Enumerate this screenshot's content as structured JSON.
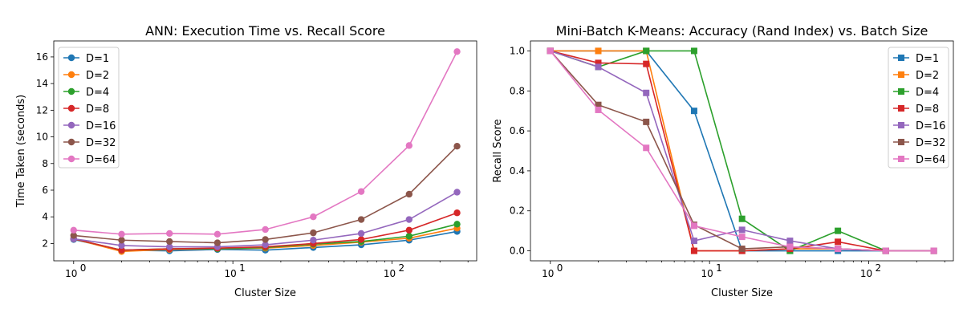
{
  "colors": {
    "D=1": "#1f77b4",
    "D=2": "#ff7f0e",
    "D=4": "#2ca02c",
    "D=8": "#d62728",
    "D=16": "#9467bd",
    "D=32": "#8c564b",
    "D=64": "#e377c2"
  },
  "chart_data": [
    {
      "type": "line",
      "title": "ANN: Execution Time vs. Recall Score",
      "xlabel": "Cluster Size",
      "ylabel": "Time Taken (seconds)",
      "xscale": "log",
      "xlim": [
        0.75,
        340
      ],
      "ylim": [
        0.7,
        17.2
      ],
      "xticks": [
        1,
        10,
        100
      ],
      "xtick_labels": [
        "10",
        "10",
        "10"
      ],
      "xtick_exponents": [
        "0",
        "1",
        "2"
      ],
      "yticks": [
        2,
        4,
        6,
        8,
        10,
        12,
        14,
        16
      ],
      "ytick_labels": [
        "2",
        "4",
        "6",
        "8",
        "10",
        "12",
        "14",
        "16"
      ],
      "marker": "circle",
      "legend": "top-left",
      "grid": false,
      "x": [
        1,
        2,
        4,
        8,
        16,
        32,
        64,
        128,
        256
      ],
      "series": [
        {
          "name": "D=1",
          "values": [
            2.3,
            1.5,
            1.45,
            1.55,
            1.5,
            1.7,
            1.9,
            2.25,
            2.9
          ]
        },
        {
          "name": "D=2",
          "values": [
            2.35,
            1.4,
            1.55,
            1.6,
            1.65,
            1.85,
            2.1,
            2.4,
            3.15
          ]
        },
        {
          "name": "D=4",
          "values": [
            2.35,
            1.5,
            1.6,
            1.6,
            1.7,
            1.95,
            2.15,
            2.55,
            3.45
          ]
        },
        {
          "name": "D=8",
          "values": [
            2.35,
            1.5,
            1.6,
            1.65,
            1.75,
            2.0,
            2.3,
            3.0,
            4.3
          ]
        },
        {
          "name": "D=16",
          "values": [
            2.35,
            1.85,
            1.75,
            1.75,
            1.9,
            2.25,
            2.75,
            3.8,
            5.85
          ]
        },
        {
          "name": "D=32",
          "values": [
            2.6,
            2.25,
            2.15,
            2.05,
            2.3,
            2.8,
            3.8,
            5.7,
            9.3
          ]
        },
        {
          "name": "D=64",
          "values": [
            3.0,
            2.7,
            2.75,
            2.7,
            3.05,
            4.0,
            5.9,
            9.35,
            16.4
          ]
        }
      ]
    },
    {
      "type": "line",
      "title": "Mini-Batch K-Means: Accuracy (Rand Index) vs. Batch Size",
      "xlabel": "Cluster Size",
      "ylabel": "Recall Score",
      "xscale": "log",
      "xlim": [
        0.75,
        340
      ],
      "ylim": [
        -0.05,
        1.05
      ],
      "xticks": [
        1,
        10,
        100
      ],
      "xtick_labels": [
        "10",
        "10",
        "10"
      ],
      "xtick_exponents": [
        "0",
        "1",
        "2"
      ],
      "yticks": [
        0.0,
        0.2,
        0.4,
        0.6,
        0.8,
        1.0
      ],
      "ytick_labels": [
        "0.0",
        "0.2",
        "0.4",
        "0.6",
        "0.8",
        "1.0"
      ],
      "marker": "square",
      "legend": "top-right",
      "grid": false,
      "x": [
        1,
        2,
        4,
        8,
        16,
        32,
        64,
        128,
        256
      ],
      "series": [
        {
          "name": "D=1",
          "values": [
            1.0,
            1.0,
            1.0,
            0.7,
            0.0,
            0.0,
            0.0,
            0.0,
            0.0
          ]
        },
        {
          "name": "D=2",
          "values": [
            1.0,
            1.0,
            1.0,
            0.0,
            0.0,
            0.01,
            0.01,
            0.0,
            0.0
          ]
        },
        {
          "name": "D=4",
          "values": [
            1.0,
            0.92,
            1.0,
            1.0,
            0.16,
            0.0,
            0.1,
            0.0,
            0.0
          ]
        },
        {
          "name": "D=8",
          "values": [
            1.0,
            0.94,
            0.935,
            0.0,
            0.0,
            0.01,
            0.045,
            0.0,
            0.0
          ]
        },
        {
          "name": "D=16",
          "values": [
            1.0,
            0.92,
            0.79,
            0.05,
            0.105,
            0.05,
            0.01,
            0.0,
            0.0
          ]
        },
        {
          "name": "D=32",
          "values": [
            1.0,
            0.73,
            0.645,
            0.13,
            0.01,
            0.02,
            0.01,
            0.0,
            0.0
          ]
        },
        {
          "name": "D=64",
          "values": [
            1.0,
            0.705,
            0.515,
            0.125,
            0.07,
            0.02,
            0.01,
            0.0,
            0.0
          ]
        }
      ]
    }
  ]
}
